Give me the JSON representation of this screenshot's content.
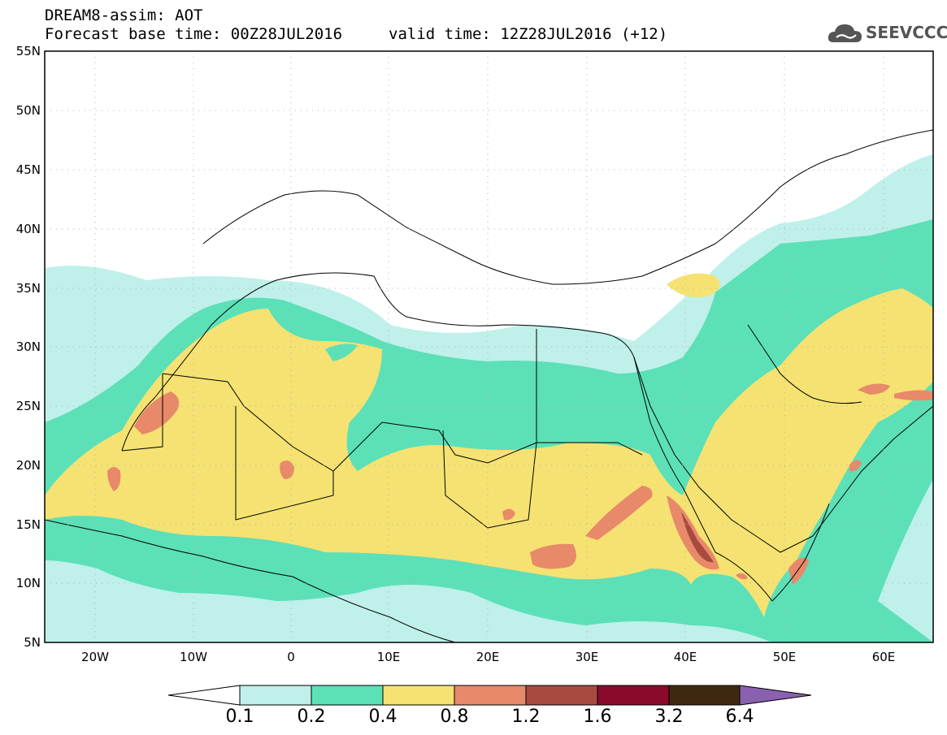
{
  "header": {
    "line1": "DREAM8-assim: AOT",
    "line2": "Forecast base time: 00Z28JUL2016",
    "line3": "valid time: 12Z28JUL2016 (+12)"
  },
  "logo": {
    "text": "SEEVCCC",
    "icon": "cloud-icon"
  },
  "map": {
    "lat_labels": [
      "55N",
      "50N",
      "45N",
      "40N",
      "35N",
      "30N",
      "25N",
      "20N",
      "15N",
      "10N",
      "5N"
    ],
    "lon_labels": [
      "20W",
      "10W",
      "0",
      "10E",
      "20E",
      "30E",
      "40E",
      "50E",
      "60E"
    ],
    "extent": {
      "lon": [
        -25,
        65
      ],
      "lat": [
        5,
        55
      ]
    }
  },
  "colorbar": {
    "values": [
      "0.1",
      "0.2",
      "0.4",
      "0.8",
      "1.2",
      "1.6",
      "3.2",
      "6.4"
    ],
    "colors": [
      "#ffffff",
      "#bff0ea",
      "#5ce0b8",
      "#f5e272",
      "#e8896a",
      "#a94a40",
      "#8a0a2a",
      "#3f2810",
      "#8a60b0"
    ]
  }
}
